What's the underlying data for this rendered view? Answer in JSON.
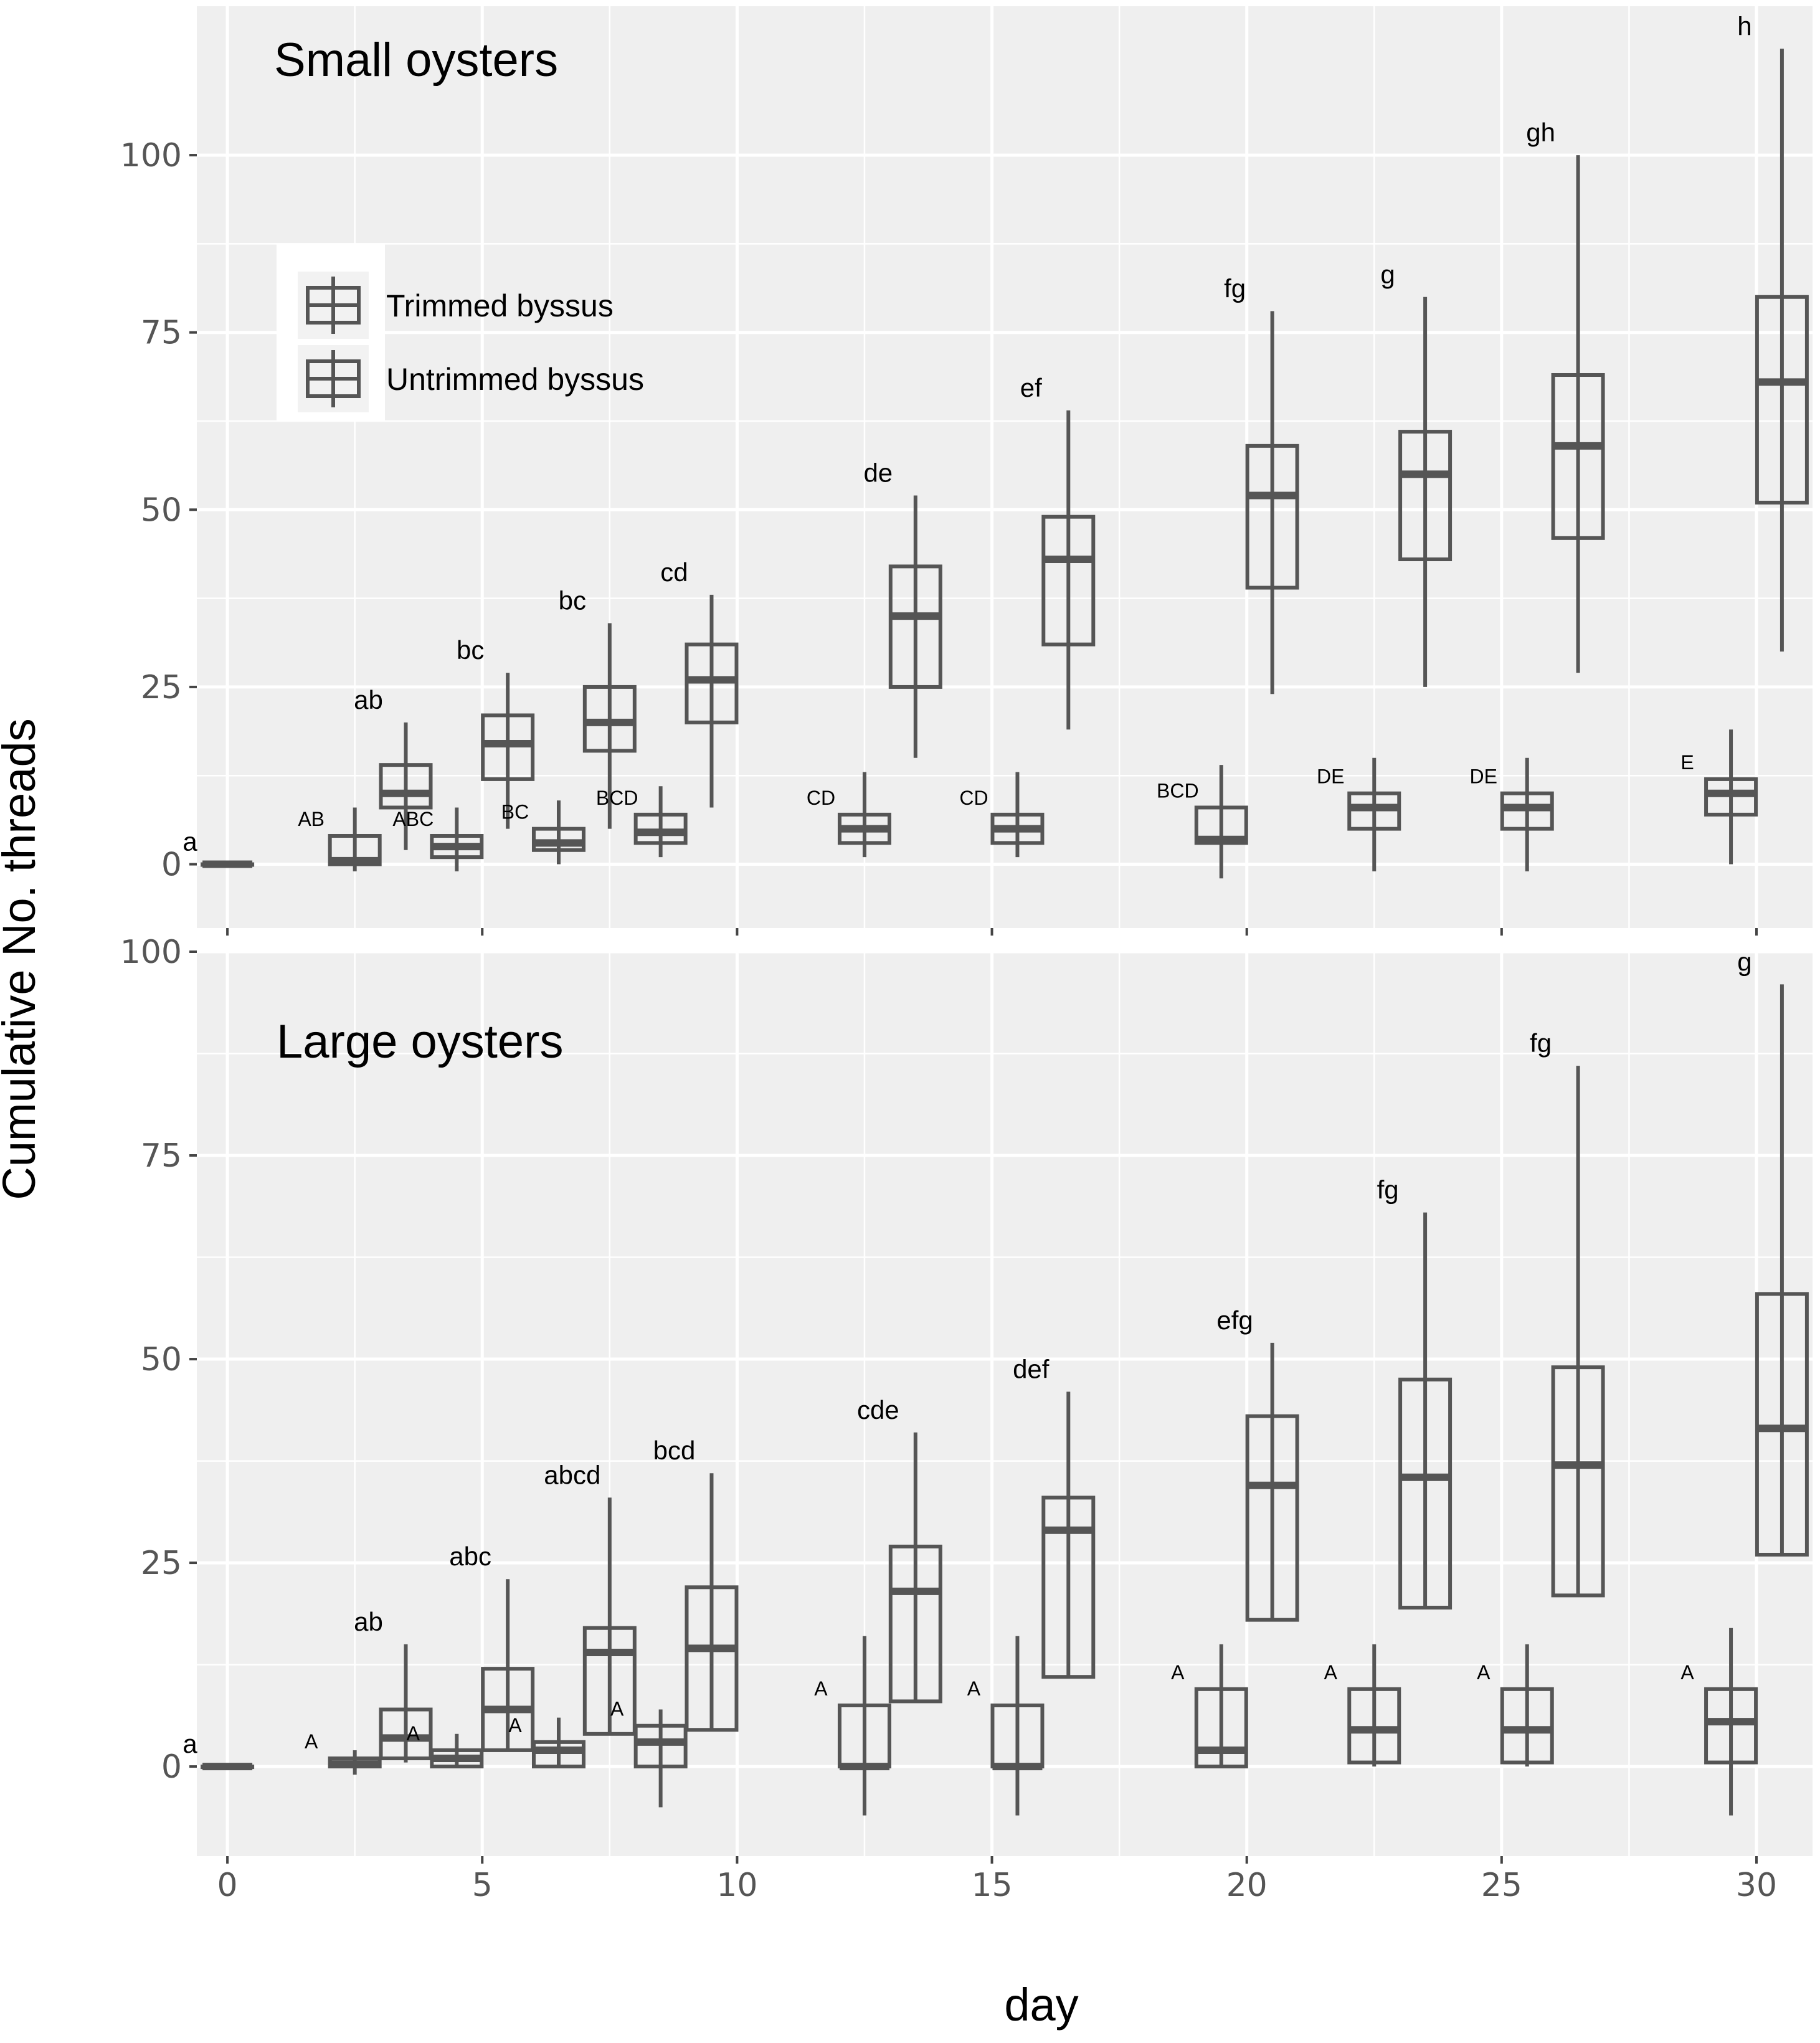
{
  "chart_data": [
    {
      "type": "box",
      "title": "Small oysters",
      "xlabel": "day",
      "ylabel": "Cumulative No. threads",
      "xlim": [
        -0.6,
        31.1
      ],
      "ylim": [
        -9,
        121
      ],
      "yticks": [
        0,
        25,
        50,
        75,
        100
      ],
      "xticks": [
        0,
        5,
        10,
        15,
        20,
        25,
        30
      ],
      "legend": {
        "position": "top-left",
        "entries": [
          "Trimmed byssus",
          "Untrimmed byssus"
        ]
      },
      "series": [
        {
          "name": "Untrimmed byssus",
          "groups": [
            {
              "day": 0,
              "min": 0,
              "q1": 0,
              "median": 0,
              "q3": 0,
              "max": 0,
              "label": "a"
            },
            {
              "day": 3,
              "min": 2,
              "q1": 8,
              "median": 10,
              "q3": 14,
              "max": 20,
              "label": "ab"
            },
            {
              "day": 5,
              "min": 5,
              "q1": 12,
              "median": 17,
              "q3": 21,
              "max": 27,
              "label": "bc"
            },
            {
              "day": 7,
              "min": 5,
              "q1": 16,
              "median": 20,
              "q3": 25,
              "max": 34,
              "label": "bc"
            },
            {
              "day": 9,
              "min": 8,
              "q1": 20,
              "median": 26,
              "q3": 31,
              "max": 38,
              "label": "cd"
            },
            {
              "day": 13,
              "min": 15,
              "q1": 25,
              "median": 35,
              "q3": 42,
              "max": 52,
              "label": "de"
            },
            {
              "day": 16,
              "min": 19,
              "q1": 31,
              "median": 43,
              "q3": 49,
              "max": 64,
              "label": "ef"
            },
            {
              "day": 20,
              "min": 24,
              "q1": 39,
              "median": 52,
              "q3": 59,
              "max": 78,
              "label": "fg"
            },
            {
              "day": 23,
              "min": 25,
              "q1": 43,
              "median": 55,
              "q3": 61,
              "max": 80,
              "label": "g"
            },
            {
              "day": 26,
              "min": 27,
              "q1": 46,
              "median": 59,
              "q3": 69,
              "max": 100,
              "label": "gh"
            },
            {
              "day": 30,
              "min": 30,
              "q1": 51,
              "median": 68,
              "q3": 80,
              "max": 115,
              "label": "h"
            }
          ]
        },
        {
          "name": "Trimmed byssus",
          "groups": [
            {
              "day": 3,
              "min": -1,
              "q1": 0,
              "median": 0.5,
              "q3": 4,
              "max": 8,
              "label": "AB"
            },
            {
              "day": 5,
              "min": -1,
              "q1": 1,
              "median": 2.5,
              "q3": 4,
              "max": 8,
              "label": "ABC"
            },
            {
              "day": 7,
              "min": 0,
              "q1": 2,
              "median": 3,
              "q3": 5,
              "max": 9,
              "label": "BC"
            },
            {
              "day": 9,
              "min": 1,
              "q1": 3,
              "median": 4.5,
              "q3": 7,
              "max": 11,
              "label": "BCD"
            },
            {
              "day": 13,
              "min": 1,
              "q1": 3,
              "median": 5,
              "q3": 7,
              "max": 13,
              "label": "CD"
            },
            {
              "day": 16,
              "min": 1,
              "q1": 3,
              "median": 5,
              "q3": 7,
              "max": 13,
              "label": "CD"
            },
            {
              "day": 20,
              "min": -2,
              "q1": 3,
              "median": 3.5,
              "q3": 8,
              "max": 14,
              "label": "BCD"
            },
            {
              "day": 23,
              "min": -1,
              "q1": 5,
              "median": 8,
              "q3": 10,
              "max": 15,
              "label": "DE"
            },
            {
              "day": 26,
              "min": -1,
              "q1": 5,
              "median": 8,
              "q3": 10,
              "max": 15,
              "label": "DE"
            },
            {
              "day": 30,
              "min": 0,
              "q1": 7,
              "median": 10,
              "q3": 12,
              "max": 19,
              "label": "E"
            }
          ]
        }
      ]
    },
    {
      "type": "box",
      "title": "Large oysters",
      "xlabel": "day",
      "ylabel": "Cumulative No. threads",
      "xlim": [
        -0.6,
        31.1
      ],
      "ylim": [
        -11,
        100
      ],
      "yticks": [
        0,
        25,
        50,
        75,
        100
      ],
      "xticks": [
        0,
        5,
        10,
        15,
        20,
        25,
        30
      ],
      "series": [
        {
          "name": "Untrimmed byssus",
          "groups": [
            {
              "day": 0,
              "min": 0,
              "q1": 0,
              "median": 0,
              "q3": 0,
              "max": 0,
              "label": "a"
            },
            {
              "day": 3,
              "min": 0.5,
              "q1": 1,
              "median": 3.5,
              "q3": 7,
              "max": 15,
              "label": "ab"
            },
            {
              "day": 5,
              "min": 2,
              "q1": 2,
              "median": 7,
              "q3": 12,
              "max": 23,
              "label": "abc"
            },
            {
              "day": 7,
              "min": 4,
              "q1": 4,
              "median": 14,
              "q3": 17,
              "max": 33,
              "label": "abcd"
            },
            {
              "day": 9,
              "min": 4.5,
              "q1": 4.5,
              "median": 14.5,
              "q3": 22,
              "max": 36,
              "label": "bcd"
            },
            {
              "day": 13,
              "min": 8,
              "q1": 8,
              "median": 21.5,
              "q3": 27,
              "max": 41,
              "label": "cde"
            },
            {
              "day": 16,
              "min": 11,
              "q1": 11,
              "median": 29,
              "q3": 33,
              "max": 46,
              "label": "def"
            },
            {
              "day": 20,
              "min": 18,
              "q1": 18,
              "median": 34.5,
              "q3": 43,
              "max": 52,
              "label": "efg"
            },
            {
              "day": 23,
              "min": 19.5,
              "q1": 19.5,
              "median": 35.5,
              "q3": 47.5,
              "max": 68,
              "label": "fg"
            },
            {
              "day": 26,
              "min": 21,
              "q1": 21,
              "median": 37,
              "q3": 49,
              "max": 86,
              "label": "fg"
            },
            {
              "day": 30,
              "min": 26,
              "q1": 26,
              "median": 41.5,
              "q3": 58,
              "max": 96,
              "label": "g"
            }
          ]
        },
        {
          "name": "Trimmed byssus",
          "groups": [
            {
              "day": 3,
              "min": -1,
              "q1": 0,
              "median": 0.3,
              "q3": 1,
              "max": 2,
              "label": "A"
            },
            {
              "day": 5,
              "min": 0,
              "q1": 0,
              "median": 1,
              "q3": 2,
              "max": 4,
              "label": "A"
            },
            {
              "day": 7,
              "min": 0,
              "q1": 0,
              "median": 2,
              "q3": 3,
              "max": 6,
              "label": "A"
            },
            {
              "day": 9,
              "min": -5,
              "q1": 0,
              "median": 3,
              "q3": 5,
              "max": 7,
              "label": "A"
            },
            {
              "day": 13,
              "min": -6,
              "q1": 0,
              "median": 0,
              "q3": 7.5,
              "max": 16,
              "label": "A"
            },
            {
              "day": 16,
              "min": -6,
              "q1": 0,
              "median": 0,
              "q3": 7.5,
              "max": 16,
              "label": "A"
            },
            {
              "day": 20,
              "min": 0,
              "q1": 0,
              "median": 2,
              "q3": 9.5,
              "max": 15,
              "label": "A"
            },
            {
              "day": 23,
              "min": 0,
              "q1": 0.5,
              "median": 4.5,
              "q3": 9.5,
              "max": 15,
              "label": "A"
            },
            {
              "day": 26,
              "min": 0,
              "q1": 0.5,
              "median": 4.5,
              "q3": 9.5,
              "max": 15,
              "label": "A"
            },
            {
              "day": 30,
              "min": -6,
              "q1": 0.5,
              "median": 5.5,
              "q3": 9.5,
              "max": 17,
              "label": "A"
            }
          ]
        }
      ]
    }
  ]
}
